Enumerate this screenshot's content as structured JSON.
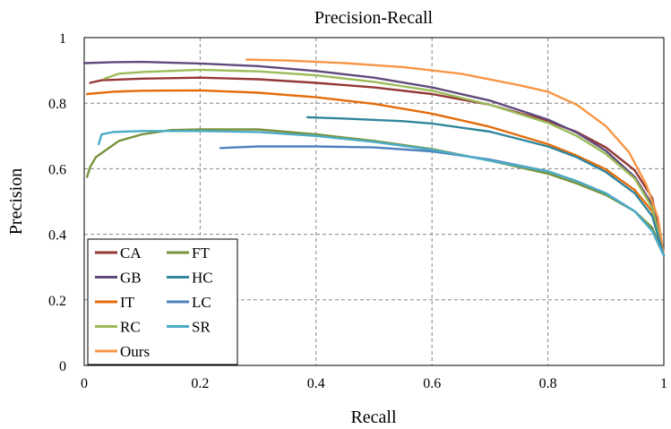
{
  "chart_data": {
    "type": "line",
    "title": "Precision-Recall",
    "xlabel": "Recall",
    "ylabel": "Precision",
    "xlim": [
      0,
      1
    ],
    "ylim": [
      0,
      1
    ],
    "xticks": [
      "0",
      "0.2",
      "0.4",
      "0.6",
      "0.8",
      "1"
    ],
    "yticks": [
      "0",
      "0.2",
      "0.4",
      "0.6",
      "0.8",
      "1"
    ],
    "grid": "dashed",
    "legend_position": "bottom-left",
    "legend_columns": 2,
    "series": [
      {
        "name": "CA",
        "color": "#953735",
        "points": [
          [
            0.01,
            0.862
          ],
          [
            0.03,
            0.87
          ],
          [
            0.1,
            0.875
          ],
          [
            0.2,
            0.878
          ],
          [
            0.3,
            0.873
          ],
          [
            0.4,
            0.862
          ],
          [
            0.5,
            0.848
          ],
          [
            0.6,
            0.828
          ],
          [
            0.7,
            0.795
          ],
          [
            0.8,
            0.745
          ],
          [
            0.85,
            0.712
          ],
          [
            0.9,
            0.665
          ],
          [
            0.95,
            0.595
          ],
          [
            0.98,
            0.51
          ],
          [
            1.0,
            0.335
          ]
        ]
      },
      {
        "name": "GB",
        "color": "#604a7b",
        "points": [
          [
            0.0,
            0.922
          ],
          [
            0.05,
            0.925
          ],
          [
            0.1,
            0.926
          ],
          [
            0.2,
            0.921
          ],
          [
            0.3,
            0.913
          ],
          [
            0.4,
            0.898
          ],
          [
            0.5,
            0.878
          ],
          [
            0.6,
            0.848
          ],
          [
            0.7,
            0.808
          ],
          [
            0.8,
            0.75
          ],
          [
            0.85,
            0.71
          ],
          [
            0.9,
            0.655
          ],
          [
            0.95,
            0.575
          ],
          [
            0.98,
            0.49
          ],
          [
            1.0,
            0.335
          ]
        ]
      },
      {
        "name": "IT",
        "color": "#e46c0a",
        "points": [
          [
            0.005,
            0.828
          ],
          [
            0.05,
            0.835
          ],
          [
            0.1,
            0.838
          ],
          [
            0.2,
            0.839
          ],
          [
            0.3,
            0.832
          ],
          [
            0.4,
            0.818
          ],
          [
            0.5,
            0.798
          ],
          [
            0.6,
            0.768
          ],
          [
            0.7,
            0.728
          ],
          [
            0.8,
            0.675
          ],
          [
            0.85,
            0.64
          ],
          [
            0.9,
            0.598
          ],
          [
            0.95,
            0.535
          ],
          [
            0.98,
            0.47
          ],
          [
            1.0,
            0.335
          ]
        ]
      },
      {
        "name": "RC",
        "color": "#9bbb59",
        "points": [
          [
            0.035,
            0.875
          ],
          [
            0.06,
            0.89
          ],
          [
            0.1,
            0.895
          ],
          [
            0.2,
            0.902
          ],
          [
            0.3,
            0.897
          ],
          [
            0.4,
            0.885
          ],
          [
            0.5,
            0.865
          ],
          [
            0.6,
            0.838
          ],
          [
            0.7,
            0.795
          ],
          [
            0.8,
            0.74
          ],
          [
            0.85,
            0.7
          ],
          [
            0.9,
            0.645
          ],
          [
            0.95,
            0.57
          ],
          [
            0.98,
            0.48
          ],
          [
            1.0,
            0.335
          ]
        ]
      },
      {
        "name": "Ours",
        "color": "#f79646",
        "points": [
          [
            0.28,
            0.933
          ],
          [
            0.35,
            0.93
          ],
          [
            0.45,
            0.922
          ],
          [
            0.55,
            0.91
          ],
          [
            0.65,
            0.89
          ],
          [
            0.75,
            0.855
          ],
          [
            0.8,
            0.835
          ],
          [
            0.85,
            0.795
          ],
          [
            0.9,
            0.73
          ],
          [
            0.94,
            0.65
          ],
          [
            0.97,
            0.55
          ],
          [
            0.99,
            0.45
          ],
          [
            1.0,
            0.335
          ]
        ]
      },
      {
        "name": "FT",
        "color": "#77933c",
        "points": [
          [
            0.005,
            0.575
          ],
          [
            0.01,
            0.605
          ],
          [
            0.02,
            0.635
          ],
          [
            0.04,
            0.66
          ],
          [
            0.06,
            0.685
          ],
          [
            0.1,
            0.705
          ],
          [
            0.15,
            0.718
          ],
          [
            0.2,
            0.72
          ],
          [
            0.3,
            0.72
          ],
          [
            0.4,
            0.705
          ],
          [
            0.5,
            0.685
          ],
          [
            0.6,
            0.66
          ],
          [
            0.7,
            0.625
          ],
          [
            0.8,
            0.585
          ],
          [
            0.85,
            0.555
          ],
          [
            0.9,
            0.52
          ],
          [
            0.95,
            0.47
          ],
          [
            0.98,
            0.42
          ],
          [
            1.0,
            0.335
          ]
        ]
      },
      {
        "name": "HC",
        "color": "#31859c",
        "points": [
          [
            0.385,
            0.757
          ],
          [
            0.45,
            0.753
          ],
          [
            0.55,
            0.745
          ],
          [
            0.6,
            0.738
          ],
          [
            0.7,
            0.713
          ],
          [
            0.8,
            0.668
          ],
          [
            0.85,
            0.635
          ],
          [
            0.9,
            0.59
          ],
          [
            0.95,
            0.525
          ],
          [
            0.98,
            0.455
          ],
          [
            1.0,
            0.335
          ]
        ]
      },
      {
        "name": "LC",
        "color": "#4f81bd",
        "points": [
          [
            0.235,
            0.663
          ],
          [
            0.3,
            0.668
          ],
          [
            0.4,
            0.668
          ],
          [
            0.5,
            0.665
          ],
          [
            0.6,
            0.653
          ],
          [
            0.7,
            0.628
          ],
          [
            0.8,
            0.592
          ],
          [
            0.85,
            0.562
          ],
          [
            0.9,
            0.525
          ],
          [
            0.95,
            0.47
          ],
          [
            0.98,
            0.41
          ],
          [
            1.0,
            0.335
          ]
        ]
      },
      {
        "name": "SR",
        "color": "#4bacc6",
        "points": [
          [
            0.025,
            0.675
          ],
          [
            0.03,
            0.705
          ],
          [
            0.05,
            0.712
          ],
          [
            0.1,
            0.715
          ],
          [
            0.2,
            0.715
          ],
          [
            0.3,
            0.712
          ],
          [
            0.4,
            0.7
          ],
          [
            0.5,
            0.682
          ],
          [
            0.6,
            0.658
          ],
          [
            0.7,
            0.625
          ],
          [
            0.8,
            0.592
          ],
          [
            0.85,
            0.562
          ],
          [
            0.9,
            0.525
          ],
          [
            0.95,
            0.47
          ],
          [
            0.98,
            0.41
          ],
          [
            1.0,
            0.335
          ]
        ]
      }
    ]
  }
}
